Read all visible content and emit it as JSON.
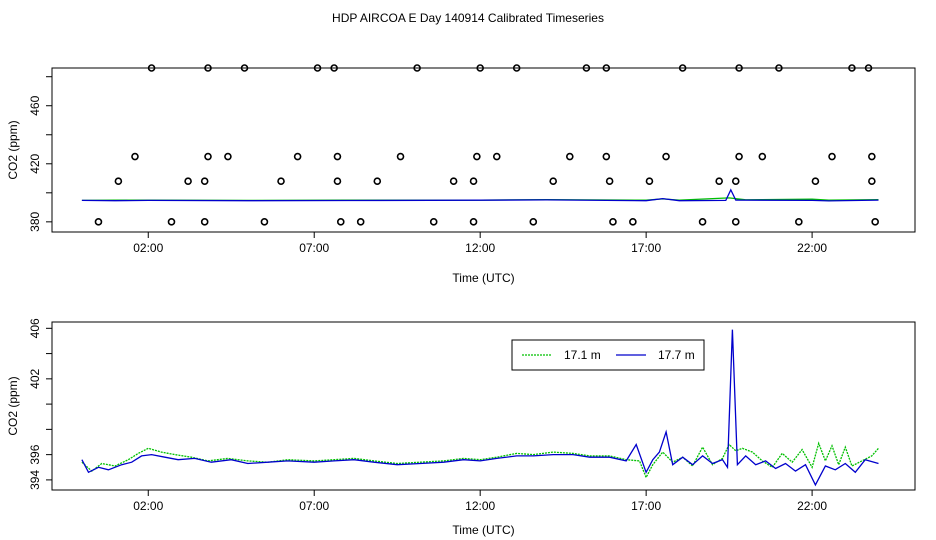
{
  "title": "HDP AIRCOA E  Day 140914  Calibrated Timeseries",
  "colors": {
    "green": "#00c000",
    "blue": "#0000cc",
    "axis": "#000000"
  },
  "chart_data": [
    {
      "type": "scatter+line",
      "xlabel": "Time (UTC)",
      "ylabel": "CO2 (ppm)",
      "xticks": [
        {
          "v": 2,
          "label": "02:00"
        },
        {
          "v": 7,
          "label": "07:00"
        },
        {
          "v": 12,
          "label": "12:00"
        },
        {
          "v": 17,
          "label": "17:00"
        },
        {
          "v": 22,
          "label": "22:00"
        }
      ],
      "yticks": [
        {
          "v": 380,
          "label": "380"
        },
        {
          "v": 400,
          "label": ""
        },
        {
          "v": 420,
          "label": "420"
        },
        {
          "v": 440,
          "label": ""
        },
        {
          "v": 460,
          "label": "460"
        },
        {
          "v": 480,
          "label": ""
        }
      ],
      "xlim": [
        -0.9,
        25.1
      ],
      "ylim": [
        373,
        486
      ],
      "points": [
        [
          0.5,
          380
        ],
        [
          1.1,
          408
        ],
        [
          1.6,
          425
        ],
        [
          2.1,
          486
        ],
        [
          2.7,
          380
        ],
        [
          3.2,
          408
        ],
        [
          3.7,
          408
        ],
        [
          3.7,
          380
        ],
        [
          3.8,
          425
        ],
        [
          3.8,
          486
        ],
        [
          4.4,
          425
        ],
        [
          4.9,
          486
        ],
        [
          5.5,
          380
        ],
        [
          6.0,
          408
        ],
        [
          6.5,
          425
        ],
        [
          7.1,
          486
        ],
        [
          7.6,
          486
        ],
        [
          7.7,
          408
        ],
        [
          7.7,
          425
        ],
        [
          7.8,
          380
        ],
        [
          8.4,
          380
        ],
        [
          8.9,
          408
        ],
        [
          9.6,
          425
        ],
        [
          10.1,
          486
        ],
        [
          10.6,
          380
        ],
        [
          11.2,
          408
        ],
        [
          11.8,
          380
        ],
        [
          11.8,
          408
        ],
        [
          11.9,
          425
        ],
        [
          12.0,
          486
        ],
        [
          12.5,
          425
        ],
        [
          13.1,
          486
        ],
        [
          13.6,
          380
        ],
        [
          14.2,
          408
        ],
        [
          14.7,
          425
        ],
        [
          15.2,
          486
        ],
        [
          15.8,
          486
        ],
        [
          15.8,
          425
        ],
        [
          15.9,
          408
        ],
        [
          16.0,
          380
        ],
        [
          16.6,
          380
        ],
        [
          17.1,
          408
        ],
        [
          17.6,
          425
        ],
        [
          18.1,
          486
        ],
        [
          18.7,
          380
        ],
        [
          19.2,
          408
        ],
        [
          19.7,
          408
        ],
        [
          19.7,
          380
        ],
        [
          19.8,
          425
        ],
        [
          19.8,
          486
        ],
        [
          20.5,
          425
        ],
        [
          21.0,
          486
        ],
        [
          21.6,
          380
        ],
        [
          22.1,
          408
        ],
        [
          22.6,
          425
        ],
        [
          23.2,
          486
        ],
        [
          23.7,
          486
        ],
        [
          23.8,
          425
        ],
        [
          23.8,
          408
        ],
        [
          23.9,
          380
        ]
      ],
      "series": [
        {
          "name": "",
          "color": "#00c000",
          "values": [
            [
              0,
              394.8
            ],
            [
              1,
              394.9
            ],
            [
              2,
              395.0
            ],
            [
              5,
              394.8
            ],
            [
              8,
              394.9
            ],
            [
              12,
              395.0
            ],
            [
              14,
              395.3
            ],
            [
              17,
              394.9
            ],
            [
              17.5,
              395.8
            ],
            [
              18,
              395.0
            ],
            [
              19.5,
              396.5
            ],
            [
              20,
              395.2
            ],
            [
              22,
              395.6
            ],
            [
              22.5,
              395.0
            ],
            [
              24,
              395.3
            ]
          ]
        },
        {
          "name": "",
          "color": "#0000cc",
          "values": [
            [
              0,
              394.8
            ],
            [
              1,
              394.6
            ],
            [
              2,
              394.8
            ],
            [
              5,
              394.6
            ],
            [
              8,
              394.7
            ],
            [
              12,
              394.9
            ],
            [
              14,
              395.1
            ],
            [
              17,
              394.6
            ],
            [
              17.5,
              396.0
            ],
            [
              18,
              394.6
            ],
            [
              19.4,
              394.8
            ],
            [
              19.55,
              402.0
            ],
            [
              19.7,
              395.0
            ],
            [
              22,
              394.8
            ],
            [
              22.5,
              394.4
            ],
            [
              24,
              395.0
            ]
          ]
        }
      ]
    },
    {
      "type": "line",
      "xlabel": "Time (UTC)",
      "ylabel": "CO2 (ppm)",
      "xticks": [
        {
          "v": 2,
          "label": "02:00"
        },
        {
          "v": 7,
          "label": "07:00"
        },
        {
          "v": 12,
          "label": "12:00"
        },
        {
          "v": 17,
          "label": "17:00"
        },
        {
          "v": 22,
          "label": "22:00"
        }
      ],
      "yticks": [
        {
          "v": 394,
          "label": "394"
        },
        {
          "v": 396,
          "label": "396"
        },
        {
          "v": 398,
          "label": ""
        },
        {
          "v": 400,
          "label": ""
        },
        {
          "v": 402,
          "label": "402"
        },
        {
          "v": 404,
          "label": ""
        },
        {
          "v": 406,
          "label": "406"
        }
      ],
      "xlim": [
        -0.9,
        25.1
      ],
      "ylim": [
        393.2,
        406.5
      ],
      "legend": "top-center",
      "series": [
        {
          "name": "17.1 m",
          "color": "#00c000",
          "values": [
            [
              0,
              395.4
            ],
            [
              0.3,
              394.7
            ],
            [
              0.6,
              395.3
            ],
            [
              1,
              395.1
            ],
            [
              1.4,
              395.6
            ],
            [
              1.7,
              396.1
            ],
            [
              2.0,
              396.5
            ],
            [
              2.4,
              396.2
            ],
            [
              2.8,
              396.0
            ],
            [
              3.3,
              395.8
            ],
            [
              3.8,
              395.5
            ],
            [
              4.4,
              395.7
            ],
            [
              5,
              395.5
            ],
            [
              5.6,
              395.4
            ],
            [
              6.2,
              395.6
            ],
            [
              7,
              395.5
            ],
            [
              7.6,
              395.6
            ],
            [
              8.2,
              395.7
            ],
            [
              8.8,
              395.5
            ],
            [
              9.5,
              395.3
            ],
            [
              10.2,
              395.4
            ],
            [
              10.9,
              395.5
            ],
            [
              11.5,
              395.7
            ],
            [
              12,
              395.6
            ],
            [
              12.5,
              395.8
            ],
            [
              13.1,
              396.1
            ],
            [
              13.6,
              396.0
            ],
            [
              14.2,
              396.2
            ],
            [
              14.8,
              396.1
            ],
            [
              15.3,
              395.9
            ],
            [
              15.9,
              395.9
            ],
            [
              16.4,
              395.6
            ],
            [
              16.8,
              395.5
            ],
            [
              17.0,
              394.2
            ],
            [
              17.2,
              395.2
            ],
            [
              17.5,
              396.2
            ],
            [
              17.8,
              395.4
            ],
            [
              18.1,
              395.8
            ],
            [
              18.4,
              395.1
            ],
            [
              18.7,
              396.6
            ],
            [
              19.0,
              395.2
            ],
            [
              19.3,
              395.7
            ],
            [
              19.5,
              396.8
            ],
            [
              19.7,
              396.3
            ],
            [
              19.9,
              396.5
            ],
            [
              20.2,
              396.2
            ],
            [
              20.5,
              395.5
            ],
            [
              20.8,
              395.0
            ],
            [
              21.1,
              396.1
            ],
            [
              21.4,
              395.4
            ],
            [
              21.7,
              396.4
            ],
            [
              22.0,
              395.0
            ],
            [
              22.2,
              396.9
            ],
            [
              22.4,
              395.5
            ],
            [
              22.6,
              396.7
            ],
            [
              22.8,
              395.2
            ],
            [
              23.0,
              396.6
            ],
            [
              23.2,
              395.1
            ],
            [
              23.5,
              395.5
            ],
            [
              23.8,
              395.9
            ],
            [
              24.0,
              396.5
            ]
          ]
        },
        {
          "name": "17.7 m",
          "color": "#0000cc",
          "values": [
            [
              0,
              395.6
            ],
            [
              0.2,
              394.6
            ],
            [
              0.5,
              395.0
            ],
            [
              0.8,
              394.8
            ],
            [
              1.2,
              395.2
            ],
            [
              1.5,
              395.4
            ],
            [
              1.8,
              395.9
            ],
            [
              2.1,
              396.0
            ],
            [
              2.5,
              395.8
            ],
            [
              2.9,
              395.6
            ],
            [
              3.4,
              395.7
            ],
            [
              3.9,
              395.4
            ],
            [
              4.5,
              395.6
            ],
            [
              5,
              395.3
            ],
            [
              5.6,
              395.4
            ],
            [
              6.2,
              395.5
            ],
            [
              7,
              395.4
            ],
            [
              7.6,
              395.5
            ],
            [
              8.2,
              395.6
            ],
            [
              8.8,
              395.4
            ],
            [
              9.5,
              395.2
            ],
            [
              10.2,
              395.3
            ],
            [
              10.9,
              395.4
            ],
            [
              11.5,
              395.6
            ],
            [
              12,
              395.5
            ],
            [
              12.5,
              395.7
            ],
            [
              13.1,
              395.9
            ],
            [
              13.6,
              395.9
            ],
            [
              14.2,
              396.0
            ],
            [
              14.8,
              396.0
            ],
            [
              15.3,
              395.8
            ],
            [
              15.9,
              395.8
            ],
            [
              16.4,
              395.5
            ],
            [
              16.7,
              396.8
            ],
            [
              17.0,
              394.6
            ],
            [
              17.2,
              395.6
            ],
            [
              17.4,
              396.2
            ],
            [
              17.6,
              397.8
            ],
            [
              17.8,
              395.2
            ],
            [
              18.1,
              395.8
            ],
            [
              18.4,
              395.2
            ],
            [
              18.7,
              395.9
            ],
            [
              19.0,
              395.3
            ],
            [
              19.3,
              395.6
            ],
            [
              19.45,
              395.0
            ],
            [
              19.6,
              405.9
            ],
            [
              19.75,
              395.2
            ],
            [
              20.0,
              395.9
            ],
            [
              20.3,
              395.2
            ],
            [
              20.6,
              395.5
            ],
            [
              20.9,
              394.9
            ],
            [
              21.2,
              395.3
            ],
            [
              21.5,
              394.7
            ],
            [
              21.8,
              395.2
            ],
            [
              22.1,
              393.6
            ],
            [
              22.4,
              395.1
            ],
            [
              22.7,
              394.8
            ],
            [
              23.0,
              395.3
            ],
            [
              23.3,
              394.6
            ],
            [
              23.6,
              395.6
            ],
            [
              24.0,
              395.3
            ]
          ]
        }
      ]
    }
  ]
}
